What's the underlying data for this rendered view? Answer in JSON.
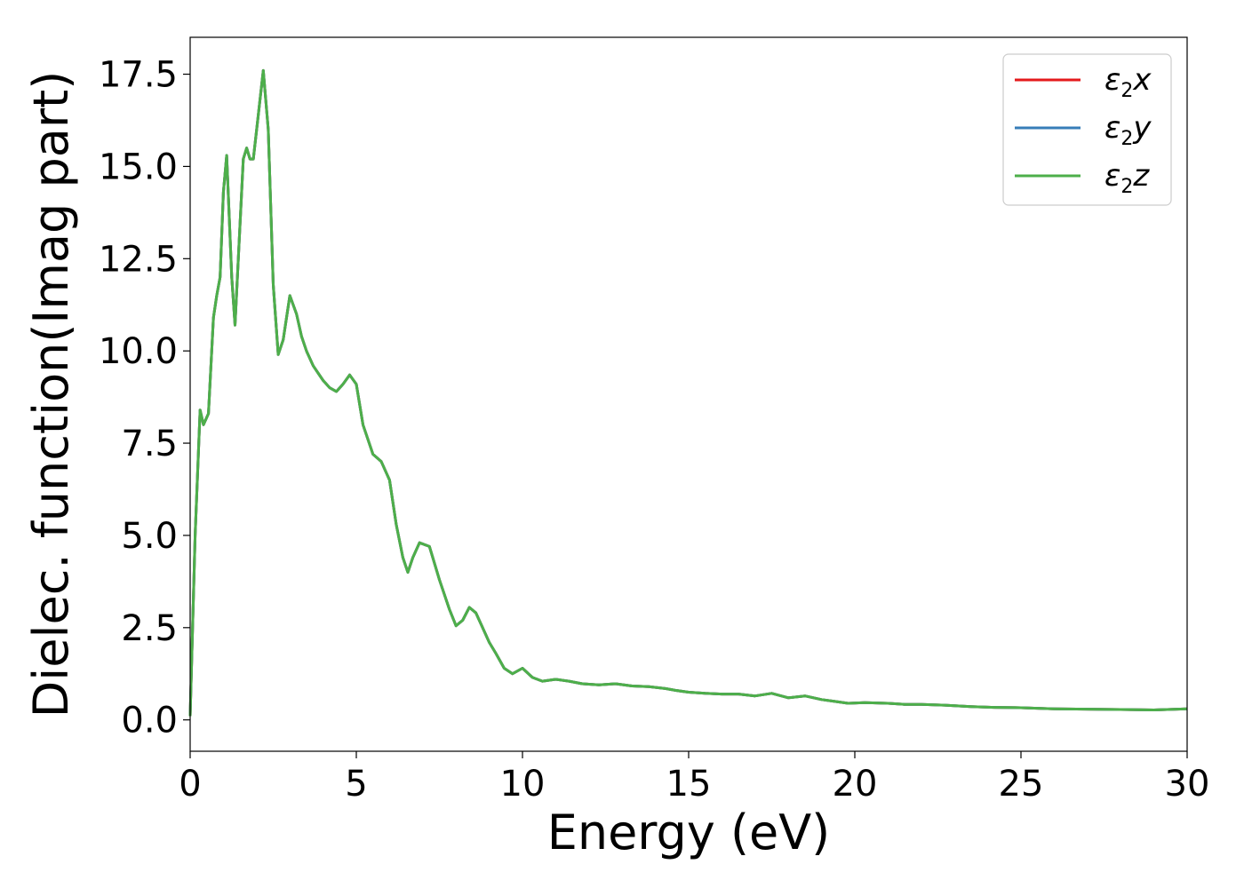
{
  "chart_data": {
    "type": "line",
    "xlabel": "Energy (eV)",
    "ylabel": "Dielec. function(Imag part)",
    "xlim": [
      0,
      30
    ],
    "ylim": [
      -0.85,
      18.5
    ],
    "xticks": [
      0,
      5,
      10,
      15,
      20,
      25,
      30
    ],
    "xtick_labels": [
      "0",
      "5",
      "10",
      "15",
      "20",
      "25",
      "30"
    ],
    "yticks": [
      0.0,
      2.5,
      5.0,
      7.5,
      10.0,
      12.5,
      15.0,
      17.5
    ],
    "ytick_labels": [
      "0.0",
      "2.5",
      "5.0",
      "7.5",
      "10.0",
      "12.5",
      "15.0",
      "17.5"
    ],
    "grid": false,
    "legend_position": "top-right",
    "x": [
      0.0,
      0.15,
      0.3,
      0.4,
      0.55,
      0.7,
      0.8,
      0.9,
      1.0,
      1.1,
      1.25,
      1.35,
      1.45,
      1.6,
      1.7,
      1.8,
      1.9,
      2.05,
      2.2,
      2.35,
      2.5,
      2.65,
      2.8,
      3.0,
      3.2,
      3.35,
      3.5,
      3.7,
      3.85,
      4.0,
      4.2,
      4.4,
      4.6,
      4.8,
      5.0,
      5.2,
      5.5,
      5.75,
      6.0,
      6.2,
      6.4,
      6.55,
      6.7,
      6.9,
      7.2,
      7.5,
      7.8,
      8.0,
      8.2,
      8.4,
      8.6,
      8.8,
      9.0,
      9.2,
      9.45,
      9.7,
      10.0,
      10.3,
      10.6,
      11.0,
      11.4,
      11.8,
      12.3,
      12.8,
      13.3,
      13.8,
      14.3,
      14.6,
      15.0,
      15.5,
      16.0,
      16.5,
      17.0,
      17.5,
      18.0,
      18.5,
      19.0,
      19.4,
      19.8,
      20.3,
      21.0,
      21.5,
      22.0,
      22.7,
      23.5,
      24.2,
      25.0,
      26.0,
      27.0,
      28.0,
      29.0,
      30.0
    ],
    "series": [
      {
        "name": "x",
        "color": "#e41a1c",
        "values": [
          0.1,
          5.0,
          8.4,
          8.0,
          8.3,
          10.9,
          11.5,
          12.0,
          14.3,
          15.3,
          12.0,
          10.7,
          12.5,
          15.2,
          15.5,
          15.2,
          15.2,
          16.4,
          17.6,
          16.0,
          11.8,
          9.9,
          10.3,
          11.5,
          11.0,
          10.4,
          10.0,
          9.6,
          9.4,
          9.2,
          9.0,
          8.9,
          9.1,
          9.35,
          9.1,
          8.0,
          7.2,
          7.0,
          6.5,
          5.3,
          4.4,
          4.0,
          4.4,
          4.8,
          4.7,
          3.8,
          3.0,
          2.55,
          2.7,
          3.05,
          2.9,
          2.5,
          2.1,
          1.8,
          1.4,
          1.25,
          1.4,
          1.15,
          1.05,
          1.1,
          1.05,
          0.98,
          0.95,
          0.98,
          0.92,
          0.9,
          0.85,
          0.8,
          0.75,
          0.72,
          0.7,
          0.7,
          0.65,
          0.72,
          0.6,
          0.65,
          0.55,
          0.5,
          0.45,
          0.47,
          0.45,
          0.42,
          0.42,
          0.4,
          0.36,
          0.34,
          0.33,
          0.3,
          0.29,
          0.28,
          0.27,
          0.3
        ]
      },
      {
        "name": "y",
        "color": "#377eb8",
        "values": [
          0.1,
          5.0,
          8.4,
          8.0,
          8.3,
          10.9,
          11.5,
          12.0,
          14.3,
          15.3,
          12.0,
          10.7,
          12.5,
          15.2,
          15.5,
          15.2,
          15.2,
          16.4,
          17.6,
          16.0,
          11.8,
          9.9,
          10.3,
          11.5,
          11.0,
          10.4,
          10.0,
          9.6,
          9.4,
          9.2,
          9.0,
          8.9,
          9.1,
          9.35,
          9.1,
          8.0,
          7.2,
          7.0,
          6.5,
          5.3,
          4.4,
          4.0,
          4.4,
          4.8,
          4.7,
          3.8,
          3.0,
          2.55,
          2.7,
          3.05,
          2.9,
          2.5,
          2.1,
          1.8,
          1.4,
          1.25,
          1.4,
          1.15,
          1.05,
          1.1,
          1.05,
          0.98,
          0.95,
          0.98,
          0.92,
          0.9,
          0.85,
          0.8,
          0.75,
          0.72,
          0.7,
          0.7,
          0.65,
          0.72,
          0.6,
          0.65,
          0.55,
          0.5,
          0.45,
          0.47,
          0.45,
          0.42,
          0.42,
          0.4,
          0.36,
          0.34,
          0.33,
          0.3,
          0.29,
          0.28,
          0.27,
          0.3
        ]
      },
      {
        "name": "z",
        "color": "#4daf4a",
        "values": [
          0.1,
          5.0,
          8.4,
          8.0,
          8.3,
          10.9,
          11.5,
          12.0,
          14.3,
          15.3,
          12.0,
          10.7,
          12.5,
          15.2,
          15.5,
          15.2,
          15.2,
          16.4,
          17.6,
          16.0,
          11.8,
          9.9,
          10.3,
          11.5,
          11.0,
          10.4,
          10.0,
          9.6,
          9.4,
          9.2,
          9.0,
          8.9,
          9.1,
          9.35,
          9.1,
          8.0,
          7.2,
          7.0,
          6.5,
          5.3,
          4.4,
          4.0,
          4.4,
          4.8,
          4.7,
          3.8,
          3.0,
          2.55,
          2.7,
          3.05,
          2.9,
          2.5,
          2.1,
          1.8,
          1.4,
          1.25,
          1.4,
          1.15,
          1.05,
          1.1,
          1.05,
          0.98,
          0.95,
          0.98,
          0.92,
          0.9,
          0.85,
          0.8,
          0.75,
          0.72,
          0.7,
          0.7,
          0.65,
          0.72,
          0.6,
          0.65,
          0.55,
          0.5,
          0.45,
          0.47,
          0.45,
          0.42,
          0.42,
          0.4,
          0.36,
          0.34,
          0.33,
          0.3,
          0.29,
          0.28,
          0.27,
          0.3
        ]
      }
    ],
    "legend": {
      "symbol": "ε",
      "subscript": "2"
    }
  }
}
